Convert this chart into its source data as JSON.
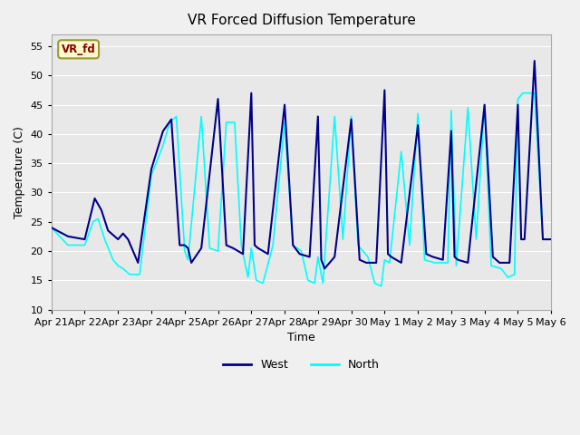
{
  "title": "VR Forced Diffusion Temperature",
  "xlabel": "Time",
  "ylabel": "Temperature (C)",
  "ylim": [
    10,
    57
  ],
  "yticks": [
    10,
    15,
    20,
    25,
    30,
    35,
    40,
    45,
    50,
    55
  ],
  "background_color": "#f0f0f0",
  "plot_bg_color": "#e8e8e8",
  "west_color": "#00008B",
  "north_color": "#00FFFF",
  "label_box_text": "VR_fd",
  "label_box_facecolor": "#FFFACD",
  "label_box_edgecolor": "#999933",
  "label_box_textcolor": "#8B0000",
  "x_tick_labels": [
    "Apr 21",
    "Apr 22",
    "Apr 23",
    "Apr 24",
    "Apr 25",
    "Apr 26",
    "Apr 27",
    "Apr 28",
    "Apr 29",
    "Apr 30",
    "May 1",
    "May 2",
    "May 3",
    "May 4",
    "May 5",
    "May 6"
  ],
  "west_kp_x": [
    0.0,
    0.5,
    1.0,
    1.3,
    1.5,
    1.7,
    2.0,
    2.15,
    2.3,
    2.6,
    3.0,
    3.35,
    3.6,
    3.85,
    4.0,
    4.1,
    4.2,
    4.5,
    5.0,
    5.25,
    5.45,
    5.75,
    6.0,
    6.1,
    6.2,
    6.5,
    7.0,
    7.25,
    7.45,
    7.75,
    8.0,
    8.1,
    8.2,
    8.5,
    9.0,
    9.25,
    9.45,
    9.75,
    10.0,
    10.1,
    10.2,
    10.5,
    11.0,
    11.25,
    11.45,
    11.75,
    12.0,
    12.1,
    12.2,
    12.5,
    13.0,
    13.25,
    13.45,
    13.75,
    14.0,
    14.1,
    14.2,
    14.5,
    14.75,
    15.0
  ],
  "west_kp_y": [
    24.0,
    22.5,
    22.0,
    29.0,
    27.0,
    23.5,
    22.0,
    23.0,
    22.0,
    18.0,
    34.0,
    40.5,
    42.5,
    21.0,
    21.0,
    20.5,
    18.0,
    20.5,
    46.0,
    21.0,
    20.5,
    19.5,
    47.0,
    21.0,
    20.5,
    19.5,
    45.0,
    21.0,
    19.5,
    19.0,
    43.0,
    18.5,
    17.0,
    19.0,
    42.5,
    18.5,
    18.0,
    18.0,
    47.5,
    19.5,
    19.0,
    18.0,
    41.5,
    19.5,
    19.0,
    18.5,
    40.5,
    19.0,
    18.5,
    18.0,
    45.0,
    19.0,
    18.0,
    18.0,
    45.0,
    22.0,
    22.0,
    52.5,
    22.0,
    22.0
  ],
  "north_kp_x": [
    0.0,
    0.5,
    1.0,
    1.25,
    1.4,
    1.6,
    1.85,
    2.0,
    2.15,
    2.35,
    2.65,
    3.0,
    3.35,
    3.55,
    3.75,
    4.0,
    4.1,
    4.5,
    4.75,
    5.0,
    5.25,
    5.5,
    5.7,
    5.9,
    6.0,
    6.15,
    6.35,
    6.65,
    7.0,
    7.25,
    7.5,
    7.7,
    7.9,
    8.0,
    8.15,
    8.5,
    8.75,
    9.0,
    9.2,
    9.5,
    9.7,
    9.9,
    10.0,
    10.15,
    10.5,
    10.75,
    11.0,
    11.2,
    11.5,
    11.7,
    11.9,
    12.0,
    12.15,
    12.5,
    12.75,
    13.0,
    13.2,
    13.5,
    13.7,
    13.9,
    14.0,
    14.15,
    14.5,
    14.75,
    15.0
  ],
  "north_kp_y": [
    24.0,
    21.0,
    21.0,
    25.0,
    25.5,
    22.0,
    18.5,
    17.5,
    17.0,
    16.0,
    16.0,
    33.0,
    38.0,
    42.0,
    43.0,
    20.0,
    18.5,
    43.0,
    20.5,
    20.0,
    42.0,
    42.0,
    21.0,
    15.5,
    20.5,
    15.0,
    14.5,
    21.0,
    42.0,
    21.0,
    20.0,
    15.0,
    14.5,
    19.0,
    14.5,
    43.0,
    22.0,
    43.0,
    21.0,
    19.0,
    14.5,
    14.0,
    18.5,
    18.0,
    37.0,
    21.0,
    43.5,
    18.5,
    18.0,
    18.0,
    18.0,
    44.0,
    17.5,
    44.5,
    22.0,
    45.0,
    17.5,
    17.0,
    15.5,
    16.0,
    46.0,
    47.0,
    47.0,
    22.0,
    22.0
  ]
}
